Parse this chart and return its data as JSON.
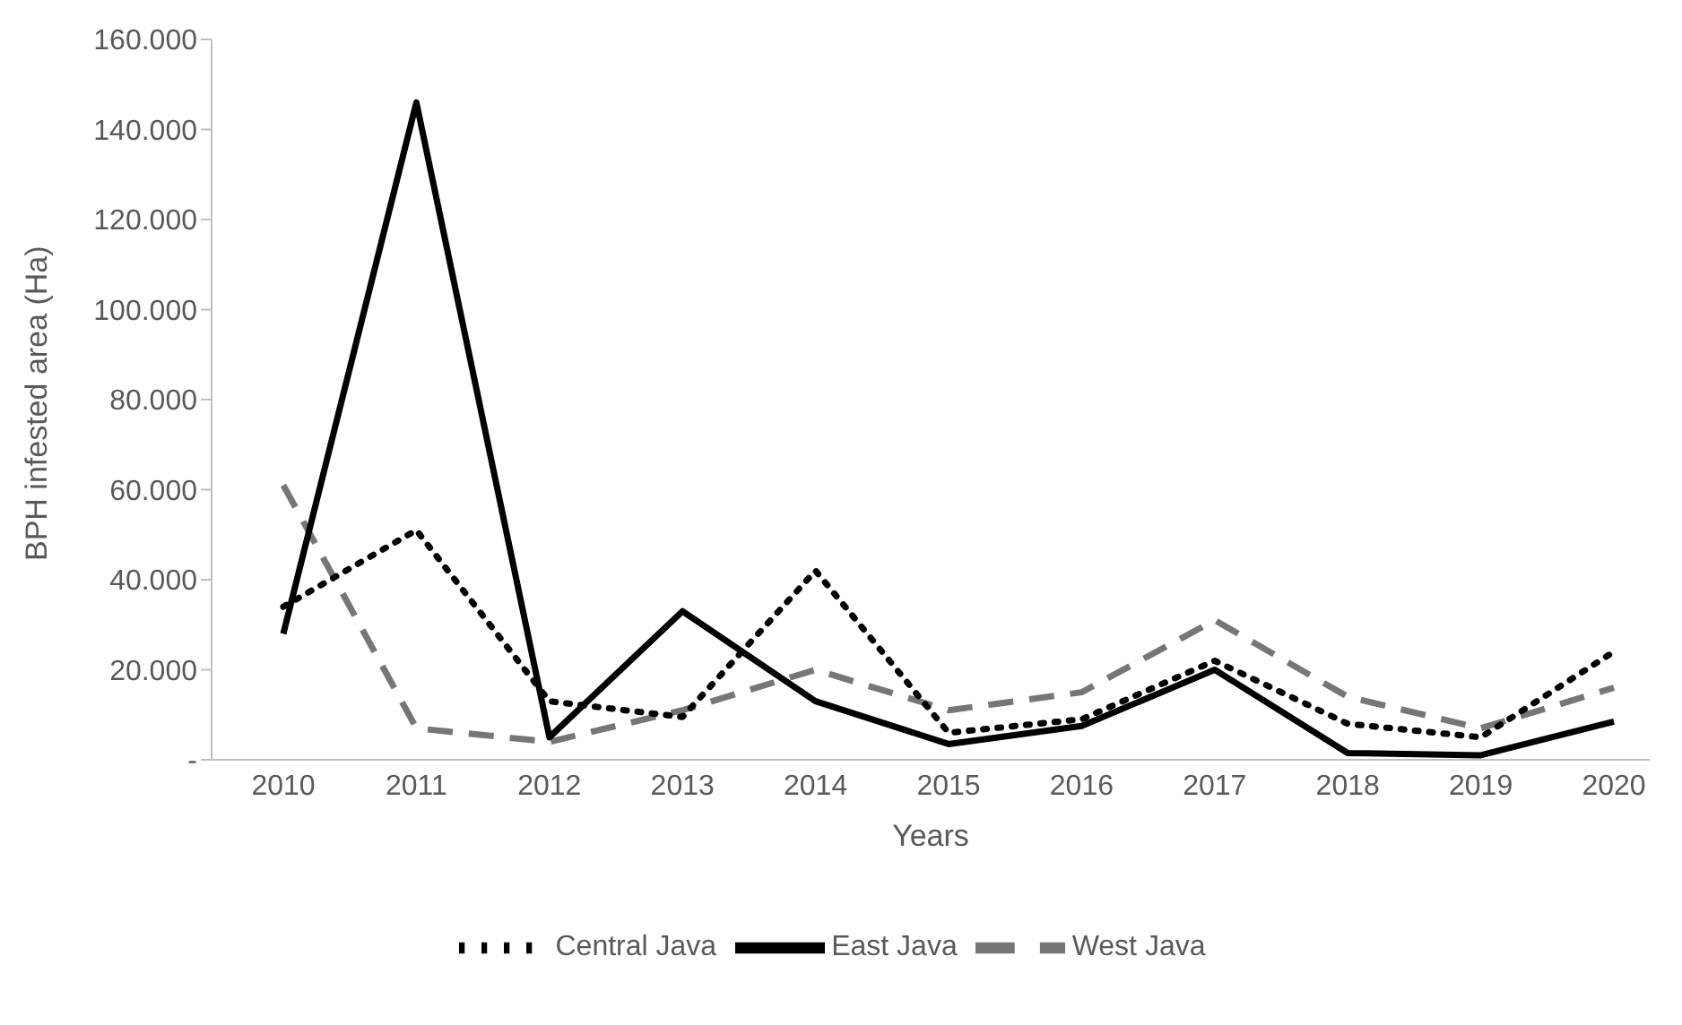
{
  "chart_data": {
    "type": "line",
    "xlabel": "Years",
    "ylabel": "BPH infested area (Ha)",
    "categories": [
      "2010",
      "2011",
      "2012",
      "2013",
      "2014",
      "2015",
      "2016",
      "2017",
      "2018",
      "2019",
      "2020"
    ],
    "series": [
      {
        "name": "West Java",
        "color": "#767676",
        "line_style": "dashed",
        "values": [
          61000,
          7000,
          4000,
          11000,
          20000,
          11000,
          15000,
          31000,
          14000,
          7000,
          16000
        ]
      },
      {
        "name": "Central Java",
        "color": "#000000",
        "line_style": "dotted",
        "values": [
          34000,
          51000,
          13000,
          9500,
          42000,
          6000,
          9000,
          22000,
          8000,
          5000,
          24000
        ]
      },
      {
        "name": "East Java",
        "color": "#000000",
        "line_style": "solid",
        "values": [
          28000,
          146000,
          5000,
          33000,
          13000,
          3500,
          7500,
          20000,
          1500,
          1000,
          8500
        ]
      }
    ],
    "ylim": [
      0,
      160000
    ],
    "yticks": [
      {
        "value": 0,
        "label": "-"
      },
      {
        "value": 20000,
        "label": "20.000"
      },
      {
        "value": 40000,
        "label": "40.000"
      },
      {
        "value": 60000,
        "label": "60.000"
      },
      {
        "value": 80000,
        "label": "80.000"
      },
      {
        "value": 100000,
        "label": "100.000"
      },
      {
        "value": 120000,
        "label": "120.000"
      },
      {
        "value": 140000,
        "label": "140.000"
      },
      {
        "value": 160000,
        "label": "160.000"
      }
    ],
    "grid": false,
    "legend": "bottom",
    "marker": "none"
  }
}
